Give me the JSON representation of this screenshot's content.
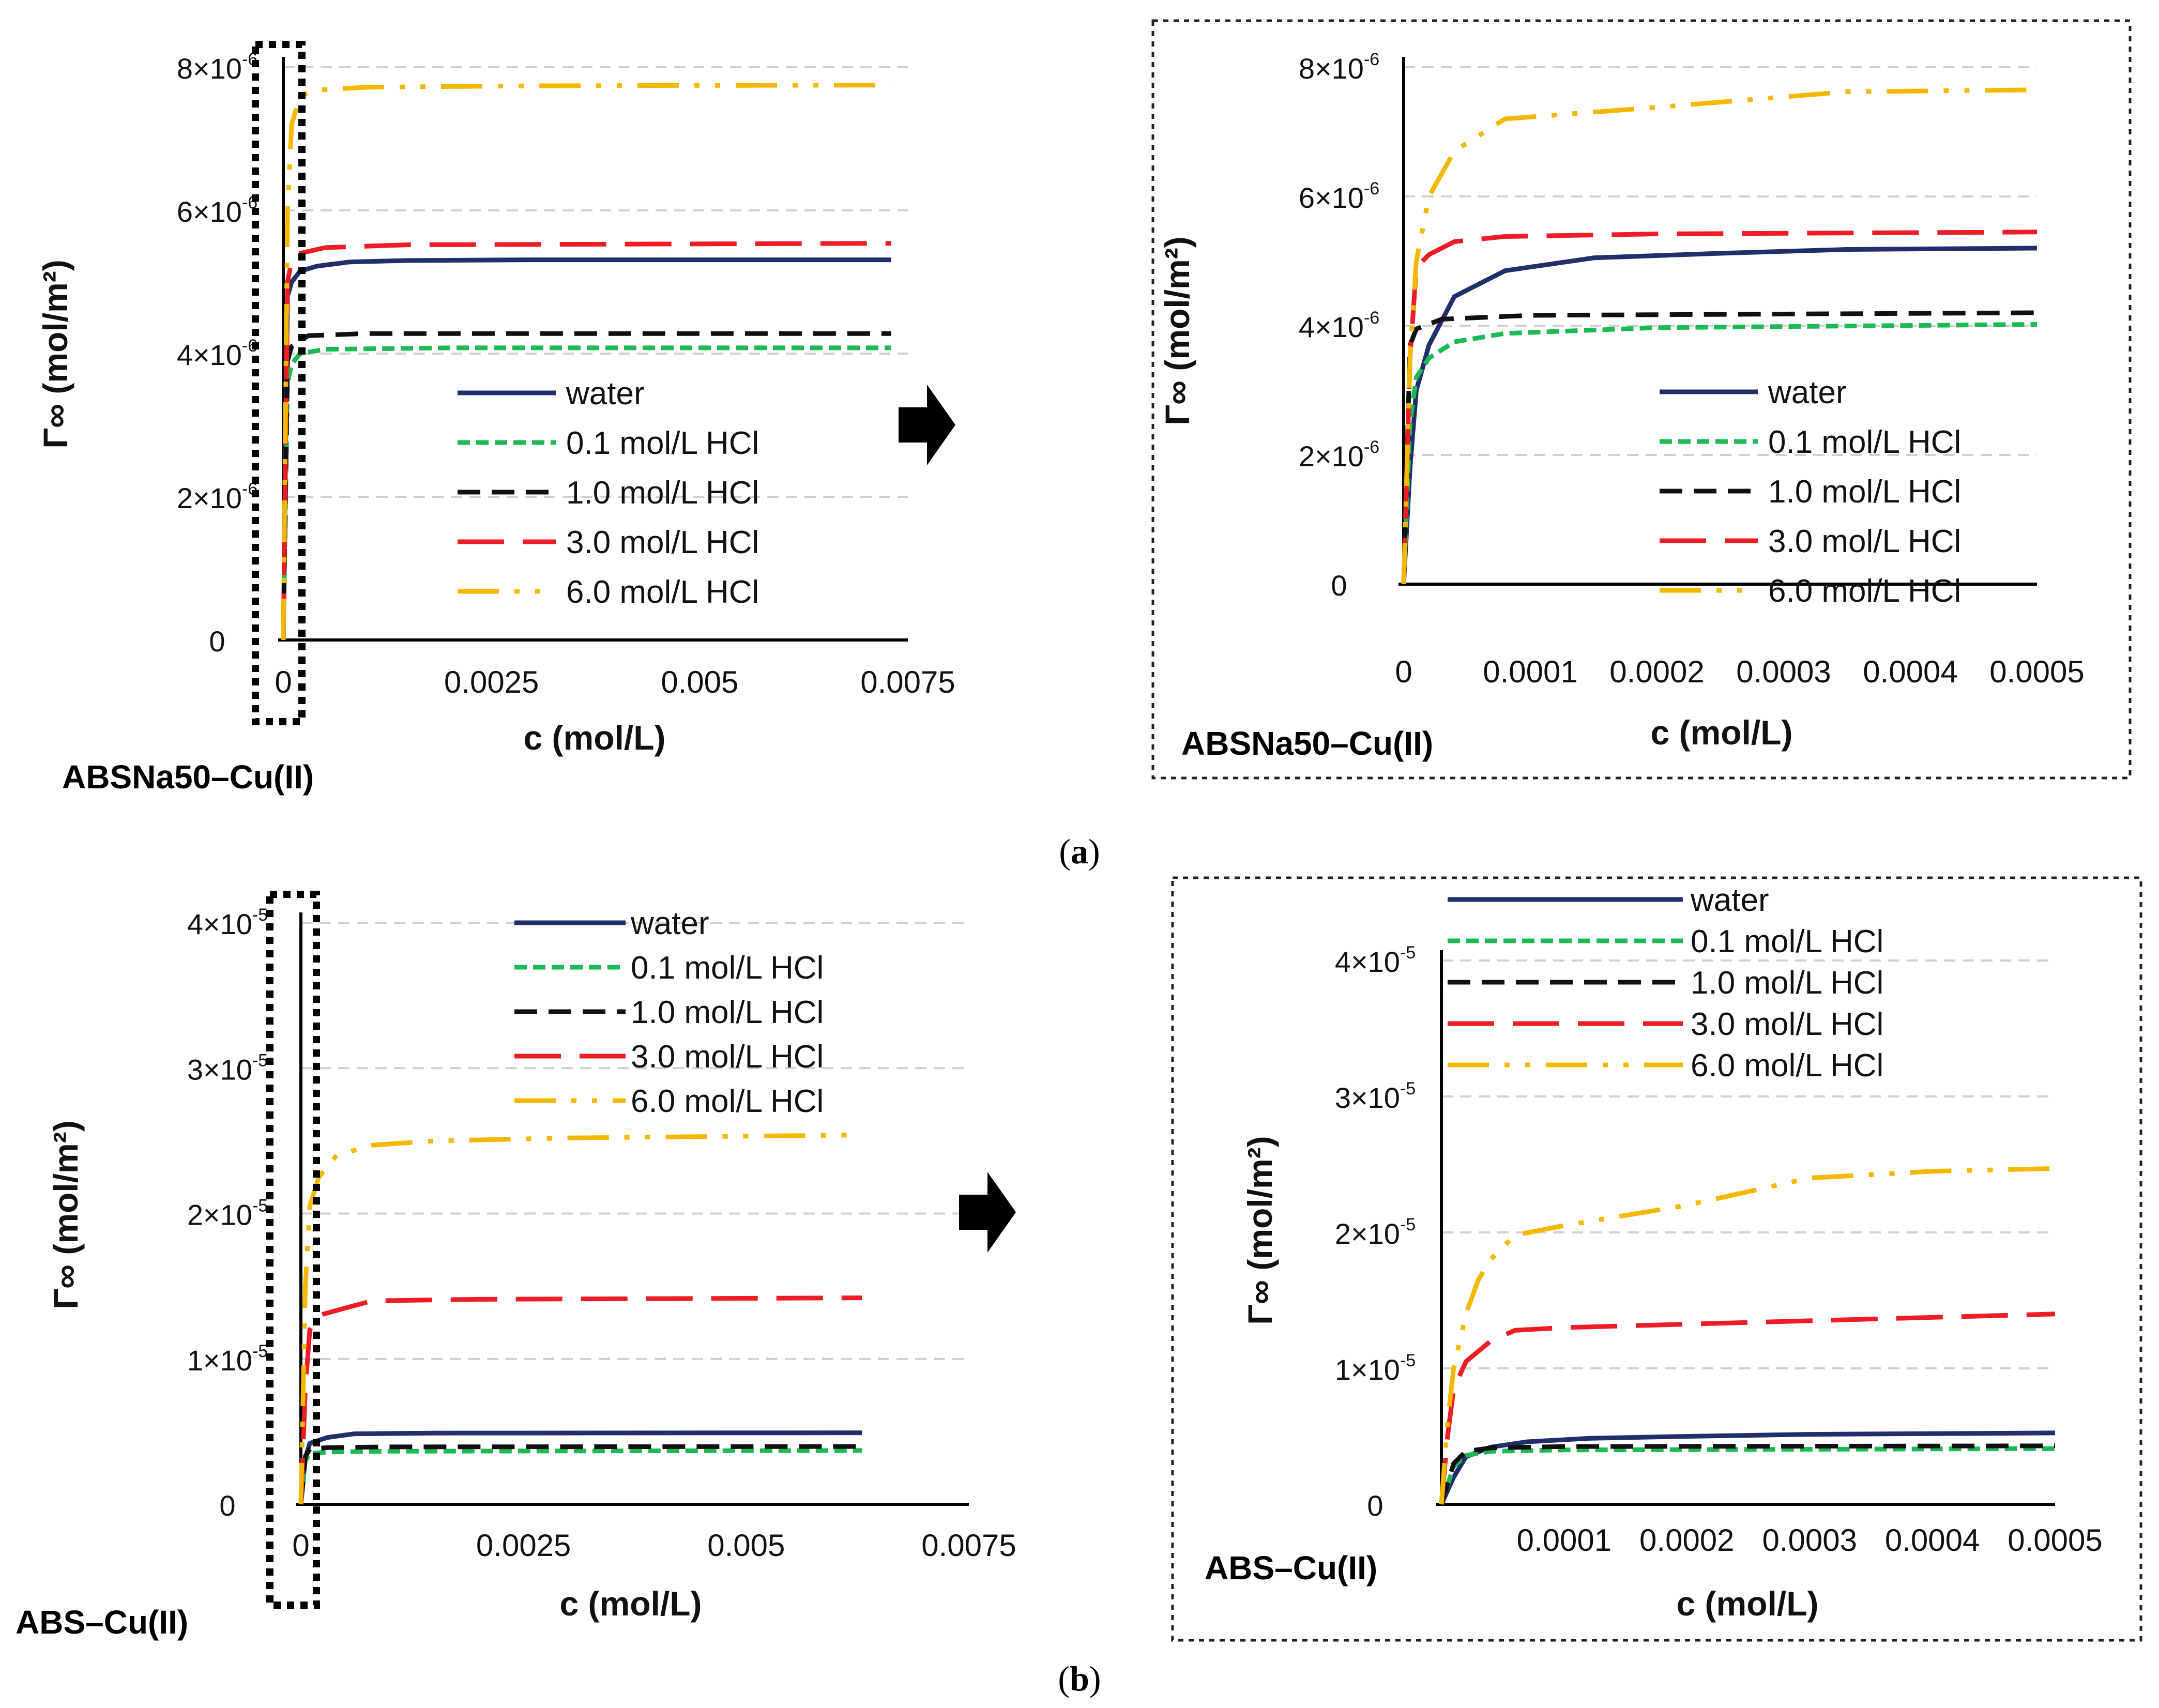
{
  "figure": {
    "panel_labels": [
      {
        "id": "a",
        "open": "(",
        "letter": "a",
        "close": ")"
      },
      {
        "id": "b",
        "open": "(",
        "letter": "b",
        "close": ")"
      }
    ]
  },
  "colors": {
    "water": "#1f2f6b",
    "hcl_0_1": "#1db954",
    "hcl_1_0": "#111111",
    "hcl_3_0": "#ee1c25",
    "hcl_6_0": "#f5b800"
  },
  "chart_data": [
    {
      "id": "a-full",
      "type": "line",
      "title": "ABSNa50–Cu(II)",
      "xlabel": "c (mol/L)",
      "ylabel": "Γ∞ (mol/m²)",
      "xlim": [
        0,
        0.0075
      ],
      "ylim": [
        0,
        8e-06
      ],
      "x_ticks": [
        {
          "v": 0,
          "label": "0"
        },
        {
          "v": 0.0025,
          "label": "0.0025"
        },
        {
          "v": 0.005,
          "label": "0.005"
        },
        {
          "v": 0.0075,
          "label": "0.0075"
        }
      ],
      "y_ticks": [
        {
          "v": 0,
          "label": "0"
        },
        {
          "v": 2e-06,
          "label": "2×10",
          "exp": "-6"
        },
        {
          "v": 4e-06,
          "label": "4×10",
          "exp": "-6"
        },
        {
          "v": 6e-06,
          "label": "6×10",
          "exp": "-6"
        },
        {
          "v": 8e-06,
          "label": "8×10",
          "exp": "-6"
        }
      ],
      "grid": true,
      "legend_position": "center-right",
      "series": [
        {
          "name": "water",
          "key": "water",
          "dash": "solid",
          "x": [
            0,
            5e-05,
            0.0001,
            0.0002,
            0.0004,
            0.0008,
            0.0015,
            0.003,
            0.0073
          ],
          "y": [
            0,
            4.8e-06,
            5e-06,
            5.15e-06,
            5.22e-06,
            5.28e-06,
            5.3e-06,
            5.31e-06,
            5.31e-06
          ]
        },
        {
          "name": "0.1 mol/L HCl",
          "key": "hcl_0_1",
          "dash": "short",
          "x": [
            0,
            5e-05,
            0.0001,
            0.0002,
            0.0005,
            0.002,
            0.0073
          ],
          "y": [
            0,
            3.6e-06,
            3.85e-06,
            4e-06,
            4.06e-06,
            4.08e-06,
            4.08e-06
          ]
        },
        {
          "name": "1.0 mol/L HCl",
          "key": "hcl_1_0",
          "dash": "medium",
          "x": [
            0,
            5e-05,
            0.0001,
            0.0003,
            0.001,
            0.0073
          ],
          "y": [
            0,
            3.9e-06,
            4.1e-06,
            4.25e-06,
            4.28e-06,
            4.28e-06
          ]
        },
        {
          "name": "3.0 mol/L HCl",
          "key": "hcl_3_0",
          "dash": "long",
          "x": [
            0,
            5e-05,
            0.0001,
            0.0002,
            0.0005,
            0.0015,
            0.0073
          ],
          "y": [
            0,
            5e-06,
            5.3e-06,
            5.4e-06,
            5.48e-06,
            5.52e-06,
            5.54e-06
          ]
        },
        {
          "name": "6.0 mol/L HCl",
          "key": "hcl_6_0",
          "dash": "dashdot",
          "x": [
            0,
            5e-05,
            0.0001,
            0.0002,
            0.0004,
            0.001,
            0.003,
            0.0073
          ],
          "y": [
            0,
            6e-06,
            7.2e-06,
            7.6e-06,
            7.68e-06,
            7.72e-06,
            7.74e-06,
            7.75e-06
          ]
        }
      ]
    },
    {
      "id": "a-zoom",
      "type": "line",
      "title": "ABSNa50–Cu(II)",
      "xlabel": "c (mol/L)",
      "ylabel": "Γ∞ (mol/m²)",
      "xlim": [
        0,
        0.0005
      ],
      "ylim": [
        0,
        8e-06
      ],
      "x_ticks": [
        {
          "v": 0,
          "label": "0"
        },
        {
          "v": 0.0001,
          "label": "0.0001"
        },
        {
          "v": 0.0002,
          "label": "0.0002"
        },
        {
          "v": 0.0003,
          "label": "0.0003"
        },
        {
          "v": 0.0004,
          "label": "0.0004"
        },
        {
          "v": 0.0005,
          "label": "0.0005"
        }
      ],
      "y_ticks": [
        {
          "v": 0,
          "label": "0"
        },
        {
          "v": 2e-06,
          "label": "2×10",
          "exp": "-6"
        },
        {
          "v": 4e-06,
          "label": "4×10",
          "exp": "-6"
        },
        {
          "v": 6e-06,
          "label": "6×10",
          "exp": "-6"
        },
        {
          "v": 8e-06,
          "label": "8×10",
          "exp": "-6"
        }
      ],
      "grid": true,
      "legend_position": "bottom-right",
      "series": [
        {
          "name": "water",
          "key": "water",
          "dash": "solid",
          "x": [
            0,
            5e-06,
            1e-05,
            2e-05,
            4e-05,
            8e-05,
            0.00015,
            0.00025,
            0.00035,
            0.0005
          ],
          "y": [
            0,
            1.8e-06,
            3e-06,
            3.7e-06,
            4.45e-06,
            4.85e-06,
            5.05e-06,
            5.12e-06,
            5.18e-06,
            5.2e-06
          ]
        },
        {
          "name": "0.1 mol/L HCl",
          "key": "hcl_0_1",
          "dash": "short",
          "x": [
            0,
            5e-06,
            1e-05,
            2e-05,
            4e-05,
            8e-05,
            0.0002,
            0.0005
          ],
          "y": [
            0,
            2.5e-06,
            3.2e-06,
            3.5e-06,
            3.75e-06,
            3.88e-06,
            3.97e-06,
            4.02e-06
          ]
        },
        {
          "name": "1.0 mol/L HCl",
          "key": "hcl_1_0",
          "dash": "medium",
          "x": [
            0,
            5e-06,
            1e-05,
            3e-05,
            0.0001,
            0.0005
          ],
          "y": [
            0,
            3.7e-06,
            3.95e-06,
            4.1e-06,
            4.16e-06,
            4.2e-06
          ]
        },
        {
          "name": "3.0 mol/L HCl",
          "key": "hcl_3_0",
          "dash": "long",
          "x": [
            0,
            5e-06,
            1e-05,
            2e-05,
            4e-05,
            8e-05,
            0.0002,
            0.0005
          ],
          "y": [
            0,
            3.5e-06,
            4.9e-06,
            5.1e-06,
            5.3e-06,
            5.38e-06,
            5.42e-06,
            5.45e-06
          ]
        },
        {
          "name": "6.0 mol/L HCl",
          "key": "hcl_6_0",
          "dash": "dashdot",
          "x": [
            0,
            5e-06,
            1e-05,
            2e-05,
            4e-05,
            8e-05,
            0.0002,
            0.00035,
            0.0005
          ],
          "y": [
            0,
            3.5e-06,
            5e-06,
            6e-06,
            6.7e-06,
            7.2e-06,
            7.38e-06,
            7.62e-06,
            7.65e-06
          ]
        }
      ]
    },
    {
      "id": "b-full",
      "type": "line",
      "title": "ABS–Cu(II)",
      "xlabel": "c (mol/L)",
      "ylabel": "Γ∞ (mol/m²)",
      "xlim": [
        0,
        0.0075
      ],
      "ylim": [
        0,
        4e-05
      ],
      "x_ticks": [
        {
          "v": 0,
          "label": "0"
        },
        {
          "v": 0.0025,
          "label": "0.0025"
        },
        {
          "v": 0.005,
          "label": "0.005"
        },
        {
          "v": 0.0075,
          "label": "0.0075"
        }
      ],
      "y_ticks": [
        {
          "v": 0,
          "label": "0"
        },
        {
          "v": 1e-05,
          "label": "1×10",
          "exp": "-5"
        },
        {
          "v": 2e-05,
          "label": "2×10",
          "exp": "-5"
        },
        {
          "v": 3e-05,
          "label": "3×10",
          "exp": "-5"
        },
        {
          "v": 4e-05,
          "label": "4×10",
          "exp": "-5"
        }
      ],
      "grid": true,
      "legend_position": "top-right",
      "series": [
        {
          "name": "water",
          "key": "water",
          "dash": "solid",
          "x": [
            0,
            5e-05,
            0.0001,
            0.0003,
            0.0006,
            0.0015,
            0.0063
          ],
          "y": [
            0,
            3.2e-06,
            4.2e-06,
            4.6e-06,
            4.85e-06,
            4.9e-06,
            4.92e-06
          ]
        },
        {
          "name": "0.1 mol/L HCl",
          "key": "hcl_0_1",
          "dash": "short",
          "x": [
            0,
            5e-05,
            0.0001,
            0.0003,
            0.001,
            0.0063
          ],
          "y": [
            0,
            3e-06,
            3.5e-06,
            3.6e-06,
            3.65e-06,
            3.7e-06
          ]
        },
        {
          "name": "1.0 mol/L HCl",
          "key": "hcl_1_0",
          "dash": "medium",
          "x": [
            0,
            5e-05,
            0.0001,
            0.0003,
            0.001,
            0.0063
          ],
          "y": [
            0,
            3.3e-06,
            3.8e-06,
            3.9e-06,
            3.95e-06,
            3.98e-06
          ]
        },
        {
          "name": "3.0 mol/L HCl",
          "key": "hcl_3_0",
          "dash": "long",
          "x": [
            0,
            5e-05,
            0.0001,
            0.0002,
            0.0005,
            0.0008,
            0.002,
            0.0063
          ],
          "y": [
            0,
            8e-06,
            1.2e-05,
            1.3e-05,
            1.35e-05,
            1.4e-05,
            1.41e-05,
            1.42e-05
          ]
        },
        {
          "name": "6.0 mol/L HCl",
          "key": "hcl_6_0",
          "dash": "dashdot",
          "x": [
            0,
            5e-05,
            0.0001,
            0.0002,
            0.0004,
            0.0008,
            0.0015,
            0.003,
            0.0063
          ],
          "y": [
            0,
            1.5e-05,
            2.05e-05,
            2.25e-05,
            2.4e-05,
            2.47e-05,
            2.5e-05,
            2.52e-05,
            2.54e-05
          ]
        }
      ]
    },
    {
      "id": "b-zoom",
      "type": "line",
      "title": "ABS–Cu(II)",
      "xlabel": "c (mol/L)",
      "ylabel": "Γ∞ (mol/m²)",
      "xlim": [
        0,
        0.0005
      ],
      "ylim": [
        0,
        4e-05
      ],
      "x_ticks": [
        {
          "v": 0,
          "label": ""
        },
        {
          "v": 0.0001,
          "label": "0.0001"
        },
        {
          "v": 0.0002,
          "label": "0.0002"
        },
        {
          "v": 0.0003,
          "label": "0.0003"
        },
        {
          "v": 0.0004,
          "label": "0.0004"
        },
        {
          "v": 0.0005,
          "label": "0.0005"
        }
      ],
      "y_ticks": [
        {
          "v": 0,
          "label": "0"
        },
        {
          "v": 1e-05,
          "label": "1×10",
          "exp": "-5"
        },
        {
          "v": 2e-05,
          "label": "2×10",
          "exp": "-5"
        },
        {
          "v": 3e-05,
          "label": "3×10",
          "exp": "-5"
        },
        {
          "v": 4e-05,
          "label": "4×10",
          "exp": "-5"
        }
      ],
      "grid": true,
      "legend_position": "top",
      "series": [
        {
          "name": "water",
          "key": "water",
          "dash": "solid",
          "x": [
            0,
            1e-05,
            2e-05,
            4e-05,
            7e-05,
            0.00012,
            0.0002,
            0.0003,
            0.0005
          ],
          "y": [
            0,
            2e-06,
            3.5e-06,
            4.2e-06,
            4.6e-06,
            4.85e-06,
            5e-06,
            5.15e-06,
            5.25e-06
          ]
        },
        {
          "name": "0.1 mol/L HCl",
          "key": "hcl_0_1",
          "dash": "short",
          "x": [
            0,
            1e-05,
            2e-05,
            4e-05,
            0.0001,
            0.0005
          ],
          "y": [
            0,
            2.8e-06,
            3.6e-06,
            3.9e-06,
            4e-06,
            4.1e-06
          ]
        },
        {
          "name": "1.0 mol/L HCl",
          "key": "hcl_1_0",
          "dash": "medium",
          "x": [
            0,
            1e-05,
            2e-05,
            4e-05,
            0.0001,
            0.0005
          ],
          "y": [
            0,
            3e-06,
            3.9e-06,
            4.15e-06,
            4.25e-06,
            4.3e-06
          ]
        },
        {
          "name": "3.0 mol/L HCl",
          "key": "hcl_3_0",
          "dash": "long",
          "x": [
            0,
            5e-06,
            1e-05,
            2e-05,
            4e-05,
            6e-05,
            0.0001,
            0.0003,
            0.0005
          ],
          "y": [
            0,
            5e-06,
            8.5e-06,
            1.05e-05,
            1.2e-05,
            1.28e-05,
            1.3e-05,
            1.35e-05,
            1.4e-05
          ]
        },
        {
          "name": "6.0 mol/L HCl",
          "key": "hcl_6_0",
          "dash": "dashdot",
          "x": [
            0,
            5e-06,
            1e-05,
            2e-05,
            3e-05,
            4e-05,
            6e-05,
            0.0001,
            0.0002,
            0.0003,
            0.0004,
            0.0005
          ],
          "y": [
            0,
            6e-06,
            1e-05,
            1.4e-05,
            1.65e-05,
            1.8e-05,
            1.98e-05,
            2.05e-05,
            2.2e-05,
            2.4e-05,
            2.45e-05,
            2.47e-05
          ]
        }
      ]
    }
  ]
}
